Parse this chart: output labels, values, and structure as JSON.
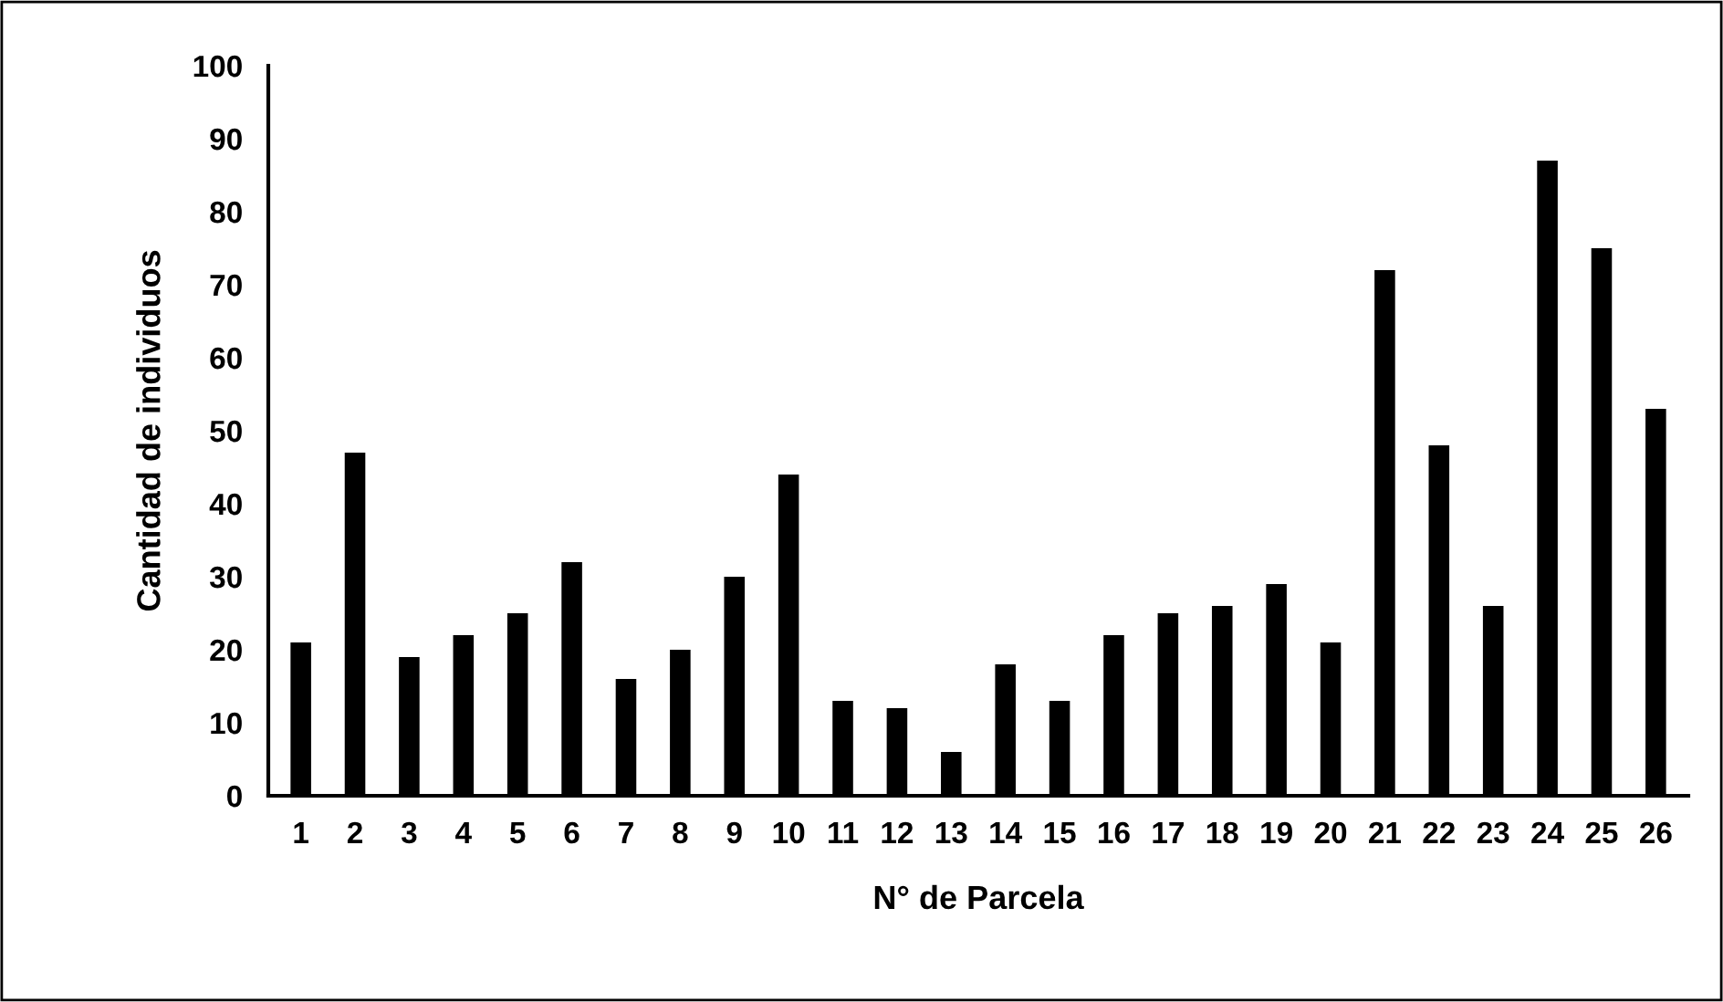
{
  "chart_data": {
    "type": "bar",
    "xlabel": "N° de Parcela",
    "ylabel": "Cantidad de individuos",
    "categories": [
      "1",
      "2",
      "3",
      "4",
      "5",
      "6",
      "7",
      "8",
      "9",
      "10",
      "11",
      "12",
      "13",
      "14",
      "15",
      "16",
      "17",
      "18",
      "19",
      "20",
      "21",
      "22",
      "23",
      "24",
      "25",
      "26"
    ],
    "values": [
      21,
      47,
      19,
      22,
      25,
      32,
      16,
      20,
      30,
      44,
      13,
      12,
      6,
      18,
      13,
      22,
      25,
      26,
      29,
      21,
      72,
      48,
      26,
      87,
      75,
      53
    ],
    "color": "#000000",
    "ylim": [
      0,
      100
    ],
    "yticks": [
      0,
      10,
      20,
      30,
      40,
      50,
      60,
      70,
      80,
      90,
      100
    ],
    "grid": false,
    "legend": false
  }
}
